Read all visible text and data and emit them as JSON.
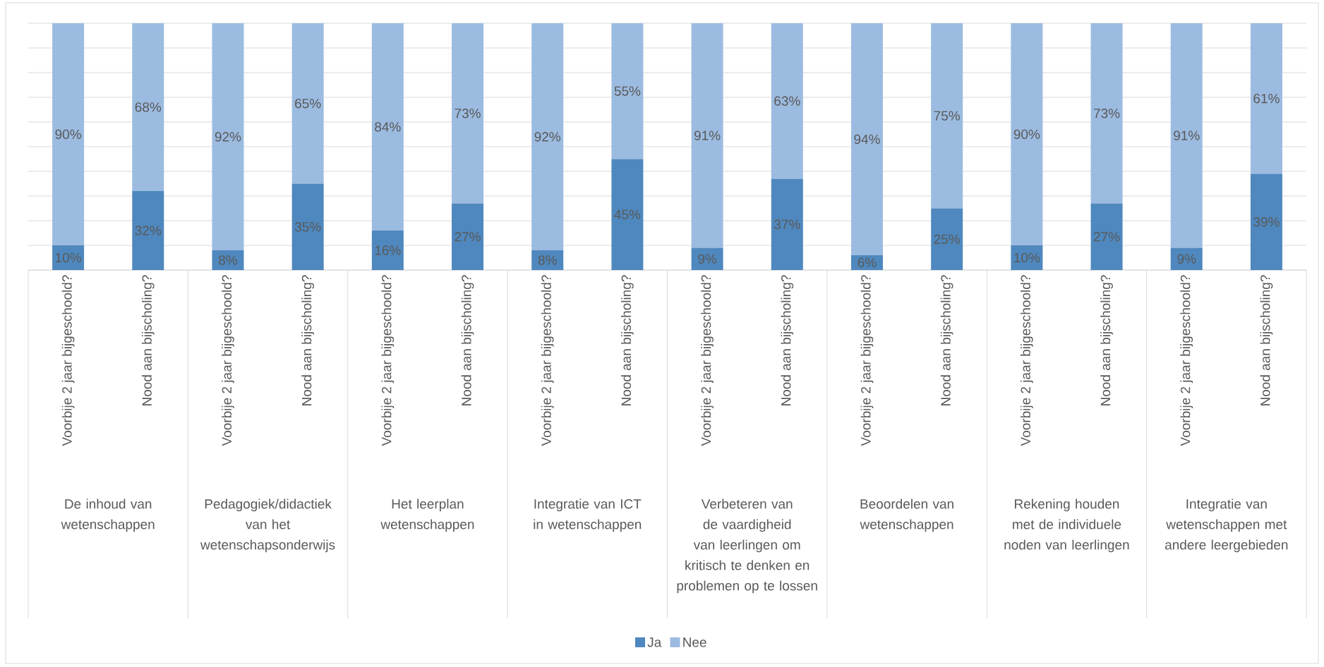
{
  "chart_data": {
    "type": "bar",
    "stacked": true,
    "categories": [
      "Voorbije 2 jaar bijgeschoold?",
      "Nood aan bijscholing?",
      "Voorbije 2 jaar bijgeschoold?",
      "Nood aan bijscholing?",
      "Voorbije 2 jaar bijgeschoold?",
      "Nood aan bijscholing?",
      "Voorbije 2 jaar bijgeschoold?",
      "Nood aan bijscholing?",
      "Voorbije 2 jaar bijgeschoold?",
      "Nood aan bijscholing?",
      "Voorbije 2 jaar bijgeschoold?",
      "Nood aan bijscholing?",
      "Voorbije 2 jaar bijgeschoold?",
      "Nood aan bijscholing?",
      "Voorbije 2 jaar bijgeschoold?",
      "Nood aan bijscholing?"
    ],
    "series": [
      {
        "name": "Ja",
        "color": "#4f88be",
        "values": [
          10,
          32,
          8,
          35,
          16,
          27,
          8,
          45,
          9,
          37,
          6,
          25,
          10,
          27,
          9,
          39
        ],
        "value_labels": [
          "10%",
          "32%",
          "8%",
          "35%",
          "16%",
          "27%",
          "8%",
          "45%",
          "9%",
          "37%",
          "6%",
          "25%",
          "10%",
          "27%",
          "9%",
          "39%"
        ]
      },
      {
        "name": "Nee",
        "color": "#9cbbe0",
        "values": [
          90,
          68,
          92,
          65,
          84,
          73,
          92,
          55,
          91,
          63,
          94,
          75,
          90,
          73,
          91,
          61
        ],
        "value_labels": [
          "90%",
          "68%",
          "92%",
          "65%",
          "84%",
          "73%",
          "92%",
          "55%",
          "91%",
          "63%",
          "94%",
          "75%",
          "90%",
          "73%",
          "91%",
          "61%"
        ]
      }
    ],
    "annotations": [
      "De inhoud van wetenschappen",
      "Pedagogiek/didactiek van het wetenschapsonderwijs",
      "Het leerplan wetenschappen",
      "Integratie van ICT in wetenschappen",
      "Verbeteren van de vaardigheid van leerlingen om kritisch te denken en problemen op te lossen",
      "Beoordelen van wetenschappen",
      "Rekening houden met de individuele noden van leerlingen",
      "Integratie van wetenschappen met andere leergebieden"
    ],
    "ylim": [
      0,
      100
    ],
    "yticks": [
      {
        "value": 0,
        "label": null
      },
      {
        "value": 10,
        "label": null
      },
      {
        "value": 20,
        "label": null
      },
      {
        "value": 30,
        "label": null
      },
      {
        "value": 40,
        "label": null
      },
      {
        "value": 50,
        "label": null
      },
      {
        "value": 60,
        "label": null
      },
      {
        "value": 70,
        "label": null
      },
      {
        "value": 80,
        "label": null
      },
      {
        "value": 90,
        "label": null
      },
      {
        "value": 100,
        "label": null
      }
    ],
    "tick_labels": "x",
    "grid": "y",
    "legend": "bottom"
  }
}
